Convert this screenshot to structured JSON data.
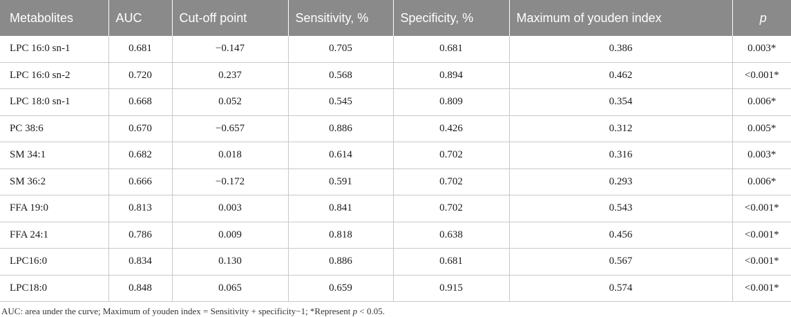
{
  "table": {
    "headers": [
      "Metabolites",
      "AUC",
      "Cut-off point",
      "Sensitivity, %",
      "Specificity, %",
      "Maximum of youden index",
      "p"
    ],
    "rows": [
      [
        "LPC 16:0 sn-1",
        "0.681",
        "−0.147",
        "0.705",
        "0.681",
        "0.386",
        "0.003*"
      ],
      [
        "LPC 16:0 sn-2",
        "0.720",
        "0.237",
        "0.568",
        "0.894",
        "0.462",
        "<0.001*"
      ],
      [
        "LPC 18:0 sn-1",
        "0.668",
        "0.052",
        "0.545",
        "0.809",
        "0.354",
        "0.006*"
      ],
      [
        "PC 38:6",
        "0.670",
        "−0.657",
        "0.886",
        "0.426",
        "0.312",
        "0.005*"
      ],
      [
        "SM 34:1",
        "0.682",
        "0.018",
        "0.614",
        "0.702",
        "0.316",
        "0.003*"
      ],
      [
        "SM 36:2",
        "0.666",
        "−0.172",
        "0.591",
        "0.702",
        "0.293",
        "0.006*"
      ],
      [
        "FFA 19:0",
        "0.813",
        "0.003",
        "0.841",
        "0.702",
        "0.543",
        "<0.001*"
      ],
      [
        "FFA 24:1",
        "0.786",
        "0.009",
        "0.818",
        "0.638",
        "0.456",
        "<0.001*"
      ],
      [
        "LPC16:0",
        "0.834",
        "0.130",
        "0.886",
        "0.681",
        "0.567",
        "<0.001*"
      ],
      [
        "LPC18:0",
        "0.848",
        "0.065",
        "0.659",
        "0.915",
        "0.574",
        "<0.001*"
      ]
    ]
  },
  "footnote": {
    "part1": "AUC: area under the curve; Maximum of youden index = Sensitivity + specificity−1; *Represent ",
    "p": "p",
    "part2": " < 0.05."
  },
  "colors": {
    "header_bg": "#8a8a8a",
    "header_text": "#ffffff",
    "grid": "#c8c8c8"
  }
}
